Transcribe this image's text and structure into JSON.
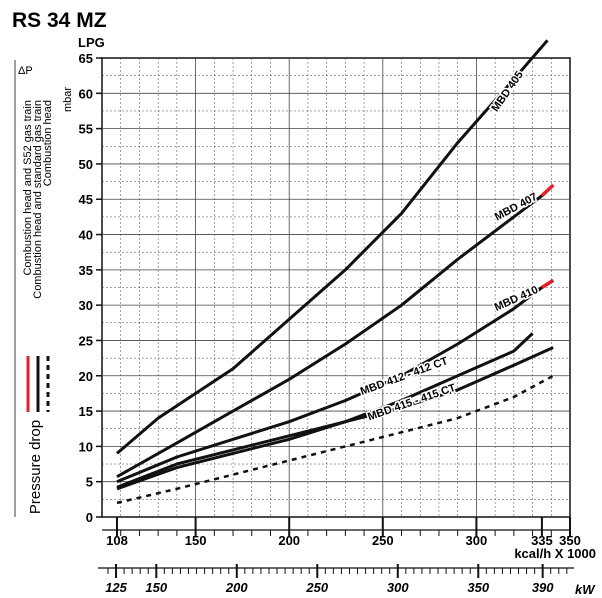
{
  "title": "RS 34 MZ",
  "fuel": "LPG",
  "delta_p": "ΔP",
  "unit": "mbar",
  "pressure_drop": "Pressure drop",
  "legend": [
    {
      "label": "Combustion head and S52 gas train",
      "color": "#e0202a",
      "style": "solid"
    },
    {
      "label": "Combustion head and standard gas train",
      "color": "#111111",
      "style": "solid"
    },
    {
      "label": "Combustion head",
      "color": "#111111",
      "style": "dotted"
    }
  ],
  "x_unit_kcal": "kcal/h X 1000",
  "x_unit_kw": "kW",
  "chart_data": {
    "type": "line",
    "title": "RS 34 MZ",
    "subtitle": "LPG",
    "xlabel": "kcal/h X 1000",
    "ylabel": "mbar",
    "xlim": [
      100,
      350
    ],
    "ylim": [
      0,
      65
    ],
    "grid": true,
    "x_ticks": [
      "108",
      "150",
      "200",
      "250",
      "300",
      "335",
      "350"
    ],
    "y_ticks": [
      "0",
      "5",
      "10",
      "15",
      "20",
      "25",
      "30",
      "35",
      "40",
      "45",
      "50",
      "55",
      "60",
      "65"
    ],
    "kw_ticks": [
      "125",
      "150",
      "200",
      "250",
      "300",
      "350",
      "390"
    ],
    "series": [
      {
        "name": "MBD 405",
        "color": "#111111",
        "x": [
          108,
          130,
          170,
          200,
          230,
          260,
          290,
          320,
          338
        ],
        "y": [
          9,
          14,
          21,
          28,
          35,
          43,
          53,
          62,
          67.5
        ],
        "red_from": null
      },
      {
        "name": "MBD 407",
        "color": "#111111",
        "x": [
          108,
          140,
          170,
          200,
          230,
          260,
          290,
          320,
          335,
          341
        ],
        "y": [
          5.7,
          10.5,
          15,
          19.5,
          24.5,
          30,
          36.5,
          42.5,
          45.5,
          47
        ],
        "red_from": 335
      },
      {
        "name": "MBD 410",
        "color": "#111111",
        "x": [
          108,
          140,
          170,
          200,
          230,
          260,
          290,
          320,
          335,
          341
        ],
        "y": [
          5,
          8.5,
          11,
          13.5,
          16.5,
          20,
          24.5,
          29.5,
          32.5,
          33.5
        ],
        "red_from": 335
      },
      {
        "name": "MBD 412 - 412 CT",
        "color": "#111111",
        "x": [
          108,
          140,
          170,
          200,
          230,
          260,
          290,
          320,
          330
        ],
        "y": [
          4.2,
          7.5,
          9.5,
          11.5,
          13.5,
          16.5,
          20,
          23.5,
          26
        ],
        "red_from": null
      },
      {
        "name": "MBD 415 - 415 CT",
        "color": "#111111",
        "x": [
          108,
          140,
          170,
          200,
          230,
          260,
          290,
          320,
          341
        ],
        "y": [
          4,
          7,
          9,
          11,
          13.5,
          15.5,
          18,
          21.5,
          24
        ],
        "red_from": null
      },
      {
        "name": "Combustion head",
        "color": "#111111",
        "dashed": true,
        "x": [
          108,
          140,
          170,
          200,
          230,
          260,
          290,
          320,
          341
        ],
        "y": [
          2,
          4,
          6,
          8,
          10,
          12,
          14,
          17,
          20
        ],
        "red_from": null
      }
    ]
  }
}
